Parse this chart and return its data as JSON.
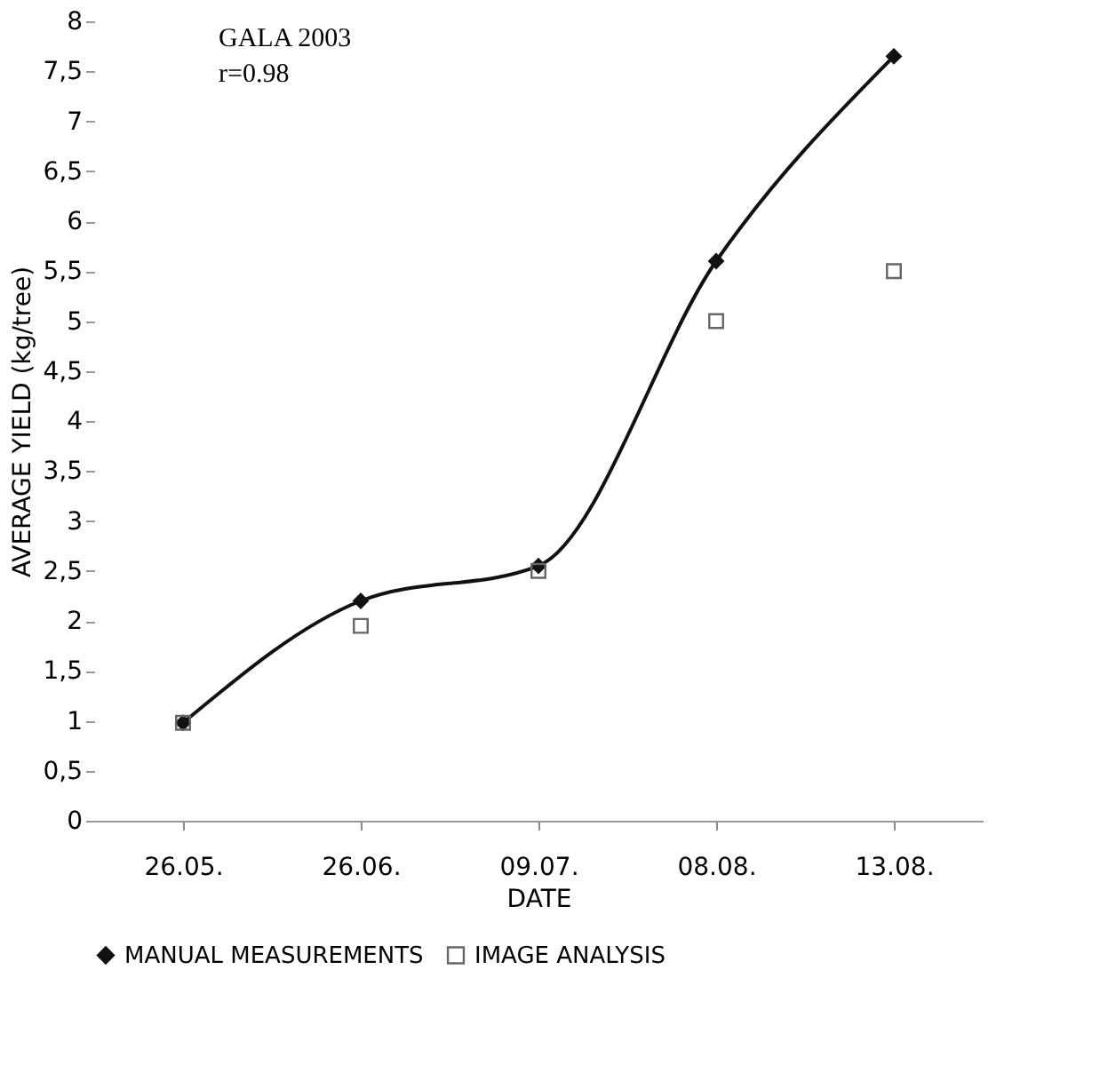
{
  "chart_data": {
    "type": "line",
    "xlabel": "DATE",
    "ylabel": "AVERAGE YIELD (kg/tree)",
    "annotations": [
      "GALA 2003",
      "r=0.98"
    ],
    "categories": [
      "26.05.",
      "26.06.",
      "09.07.",
      "08.08.",
      "13.08."
    ],
    "series": [
      {
        "name": "MANUAL MEASUREMENTS",
        "type": "line",
        "marker": "diamond",
        "color": "#111111",
        "values": [
          0.98,
          2.2,
          2.55,
          5.6,
          7.65
        ]
      },
      {
        "name": "IMAGE ANALYSIS",
        "type": "scatter",
        "marker": "square",
        "color": "#666666",
        "values": [
          0.98,
          1.95,
          2.5,
          5.0,
          5.5
        ]
      }
    ],
    "ylim": [
      0,
      8
    ],
    "yticks": [
      0,
      {
        "value": 0.5,
        "label": "0,5"
      },
      1,
      {
        "value": 1.5,
        "label": "1,5"
      },
      2,
      {
        "value": 2.5,
        "label": "2,5"
      },
      3,
      {
        "value": 3.5,
        "label": "3,5"
      },
      4,
      {
        "value": 4.5,
        "label": "4,5"
      },
      5,
      {
        "value": 5.5,
        "label": "5,5"
      },
      6,
      {
        "value": 6.5,
        "label": "6,5"
      },
      7,
      {
        "value": 7.5,
        "label": "7,5"
      },
      8
    ],
    "grid": false,
    "legend": "bottom"
  }
}
